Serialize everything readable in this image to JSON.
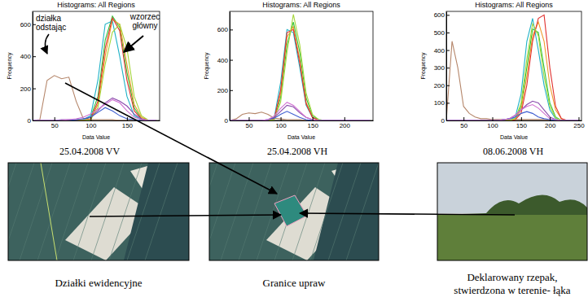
{
  "chart_data": [
    {
      "type": "line",
      "title": "Histograms: All Regions",
      "subtitle": "25.04.2008 VV",
      "x_label": "Data Value",
      "y_label": "Frequency",
      "xlim": [
        20,
        195
      ],
      "xticks": [
        50,
        100,
        150
      ],
      "ylim": [
        0,
        680
      ],
      "yticks": [
        0,
        200,
        400,
        600
      ],
      "annotations": [
        {
          "text": [
            "działka",
            "odstając"
          ]
        },
        {
          "text": [
            "wzorzec",
            "główny"
          ]
        }
      ],
      "x": [
        20,
        30,
        40,
        50,
        60,
        70,
        80,
        90,
        100,
        110,
        120,
        130,
        140,
        150,
        160,
        170,
        180,
        190
      ],
      "series": [
        {
          "color": "#b5866a",
          "values": [
            0,
            5,
            250,
            280,
            260,
            270,
            120,
            10,
            5,
            5,
            5,
            5,
            0,
            0,
            0,
            0,
            0,
            0
          ]
        },
        {
          "color": "#2fc43a",
          "values": [
            0,
            0,
            0,
            0,
            0,
            0,
            0,
            5,
            20,
            150,
            500,
            650,
            580,
            300,
            80,
            10,
            0,
            0
          ]
        },
        {
          "color": "#1fb2c6",
          "values": [
            0,
            0,
            0,
            0,
            0,
            0,
            0,
            5,
            30,
            250,
            600,
            620,
            400,
            150,
            30,
            5,
            0,
            0
          ]
        },
        {
          "color": "#f09a2a",
          "values": [
            0,
            0,
            0,
            0,
            0,
            0,
            0,
            0,
            10,
            100,
            400,
            630,
            600,
            350,
            100,
            20,
            0,
            0
          ]
        },
        {
          "color": "#e0302e",
          "values": [
            0,
            0,
            0,
            0,
            0,
            0,
            0,
            0,
            10,
            120,
            450,
            640,
            560,
            250,
            60,
            10,
            0,
            0
          ]
        },
        {
          "color": "#a6d63c",
          "values": [
            0,
            0,
            0,
            0,
            0,
            0,
            0,
            0,
            5,
            80,
            350,
            550,
            600,
            450,
            150,
            30,
            0,
            0
          ]
        },
        {
          "color": "#8a4aac",
          "values": [
            0,
            0,
            0,
            0,
            5,
            5,
            5,
            10,
            20,
            60,
            110,
            140,
            120,
            90,
            40,
            10,
            0,
            0
          ]
        },
        {
          "color": "#3e5ed0",
          "values": [
            0,
            0,
            0,
            0,
            0,
            0,
            5,
            10,
            20,
            50,
            80,
            60,
            30,
            10,
            5,
            0,
            0,
            0
          ]
        },
        {
          "color": "#d070d0",
          "values": [
            0,
            0,
            0,
            0,
            0,
            5,
            10,
            20,
            40,
            70,
            100,
            130,
            110,
            60,
            20,
            5,
            0,
            0
          ]
        }
      ]
    },
    {
      "type": "line",
      "title": "Histograms: All Regions",
      "subtitle": "25.04.2008 VH",
      "x_label": "Data Value",
      "y_label": "Frequency",
      "xlim": [
        20,
        245
      ],
      "xticks": [
        50,
        100,
        150,
        200
      ],
      "ylim": [
        0,
        720
      ],
      "yticks": [
        0,
        200,
        400,
        600
      ],
      "x": [
        20,
        30,
        40,
        50,
        60,
        70,
        80,
        90,
        100,
        110,
        120,
        130,
        140,
        150,
        160,
        170,
        180,
        190,
        200,
        210,
        220,
        230,
        240
      ],
      "series": [
        {
          "color": "#b5866a",
          "values": [
            0,
            10,
            40,
            50,
            45,
            55,
            40,
            15,
            10,
            5,
            5,
            5,
            0,
            0,
            0,
            0,
            0,
            0,
            0,
            0,
            0,
            0,
            0
          ]
        },
        {
          "color": "#2fc43a",
          "values": [
            0,
            0,
            0,
            0,
            0,
            0,
            0,
            10,
            150,
            500,
            650,
            450,
            150,
            30,
            5,
            0,
            0,
            0,
            0,
            0,
            0,
            0,
            0
          ]
        },
        {
          "color": "#1fb2c6",
          "values": [
            0,
            0,
            0,
            0,
            0,
            0,
            0,
            20,
            250,
            600,
            580,
            350,
            100,
            20,
            0,
            0,
            0,
            0,
            0,
            0,
            0,
            0,
            0
          ]
        },
        {
          "color": "#f09a2a",
          "values": [
            0,
            0,
            0,
            0,
            0,
            0,
            0,
            10,
            180,
            550,
            620,
            400,
            120,
            20,
            0,
            0,
            0,
            0,
            0,
            0,
            0,
            0,
            0
          ]
        },
        {
          "color": "#e0302e",
          "values": [
            0,
            0,
            0,
            0,
            0,
            0,
            0,
            10,
            200,
            580,
            600,
            380,
            110,
            20,
            0,
            0,
            0,
            0,
            0,
            0,
            0,
            0,
            0
          ]
        },
        {
          "color": "#a6d63c",
          "values": [
            0,
            0,
            0,
            0,
            0,
            0,
            0,
            5,
            120,
            450,
            700,
            500,
            180,
            40,
            5,
            0,
            0,
            0,
            0,
            0,
            0,
            0,
            0
          ]
        },
        {
          "color": "#8a4aac",
          "values": [
            0,
            0,
            0,
            0,
            0,
            0,
            5,
            20,
            60,
            100,
            90,
            50,
            20,
            5,
            0,
            0,
            0,
            0,
            0,
            0,
            0,
            0,
            0
          ]
        },
        {
          "color": "#3e5ed0",
          "values": [
            0,
            0,
            0,
            0,
            0,
            0,
            5,
            15,
            40,
            60,
            40,
            20,
            5,
            0,
            0,
            0,
            0,
            0,
            0,
            0,
            0,
            0,
            0
          ]
        },
        {
          "color": "#d070d0",
          "values": [
            0,
            0,
            0,
            0,
            0,
            0,
            5,
            30,
            80,
            120,
            100,
            60,
            20,
            5,
            0,
            0,
            0,
            0,
            0,
            0,
            0,
            0,
            0
          ]
        }
      ]
    },
    {
      "type": "line",
      "title": "Histograms: All Regions",
      "subtitle": "08.06.2008 VH",
      "x_label": "Data Value",
      "y_label": "Frequency",
      "xlim": [
        20,
        255
      ],
      "xticks": [
        50,
        100,
        150,
        200,
        250
      ],
      "ylim": [
        0,
        620
      ],
      "yticks": [
        0,
        100,
        200,
        300,
        400,
        500,
        600
      ],
      "x": [
        20,
        30,
        40,
        50,
        60,
        70,
        80,
        90,
        100,
        110,
        120,
        130,
        140,
        150,
        160,
        170,
        180,
        190,
        200,
        210,
        220,
        230,
        240,
        250
      ],
      "series": [
        {
          "color": "#b5866a",
          "values": [
            0,
            450,
            300,
            80,
            40,
            20,
            10,
            10,
            5,
            5,
            5,
            5,
            5,
            5,
            5,
            5,
            5,
            5,
            0,
            0,
            0,
            0,
            0,
            0
          ]
        },
        {
          "color": "#2fc43a",
          "values": [
            0,
            0,
            0,
            0,
            0,
            0,
            0,
            0,
            0,
            0,
            0,
            0,
            10,
            80,
            300,
            520,
            500,
            300,
            100,
            20,
            0,
            0,
            0,
            0
          ]
        },
        {
          "color": "#1fb2c6",
          "values": [
            0,
            0,
            0,
            0,
            0,
            0,
            0,
            0,
            0,
            0,
            0,
            0,
            20,
            150,
            450,
            580,
            400,
            200,
            60,
            10,
            0,
            0,
            0,
            0
          ]
        },
        {
          "color": "#f09a2a",
          "values": [
            0,
            0,
            0,
            0,
            0,
            0,
            0,
            0,
            0,
            0,
            0,
            0,
            10,
            60,
            250,
            480,
            560,
            450,
            200,
            60,
            10,
            0,
            0,
            0
          ]
        },
        {
          "color": "#e0302e",
          "values": [
            0,
            0,
            0,
            0,
            0,
            0,
            0,
            0,
            0,
            0,
            0,
            0,
            5,
            40,
            200,
            450,
            580,
            600,
            300,
            80,
            10,
            0,
            0,
            0
          ]
        },
        {
          "color": "#a6d63c",
          "values": [
            0,
            0,
            0,
            0,
            0,
            0,
            0,
            0,
            0,
            0,
            0,
            0,
            10,
            100,
            350,
            550,
            480,
            250,
            80,
            15,
            0,
            0,
            0,
            0
          ]
        },
        {
          "color": "#8a4aac",
          "values": [
            0,
            0,
            0,
            0,
            0,
            0,
            0,
            0,
            0,
            0,
            5,
            10,
            30,
            60,
            90,
            110,
            100,
            60,
            20,
            5,
            0,
            0,
            0,
            0
          ]
        },
        {
          "color": "#3e5ed0",
          "values": [
            0,
            0,
            0,
            0,
            0,
            0,
            0,
            0,
            0,
            0,
            5,
            10,
            20,
            40,
            50,
            40,
            20,
            10,
            5,
            0,
            0,
            0,
            0,
            0
          ]
        },
        {
          "color": "#d070d0",
          "values": [
            0,
            0,
            0,
            0,
            0,
            0,
            0,
            0,
            0,
            0,
            5,
            10,
            30,
            60,
            80,
            90,
            70,
            40,
            10,
            5,
            0,
            0,
            0,
            0
          ]
        }
      ]
    }
  ],
  "images": [
    {
      "caption": [
        "Działki ewidencyjne"
      ]
    },
    {
      "caption": [
        "Granice upraw"
      ]
    },
    {
      "caption": [
        "Deklarowany rzepak,",
        "stwierdzona w terenie- łąka"
      ]
    }
  ]
}
